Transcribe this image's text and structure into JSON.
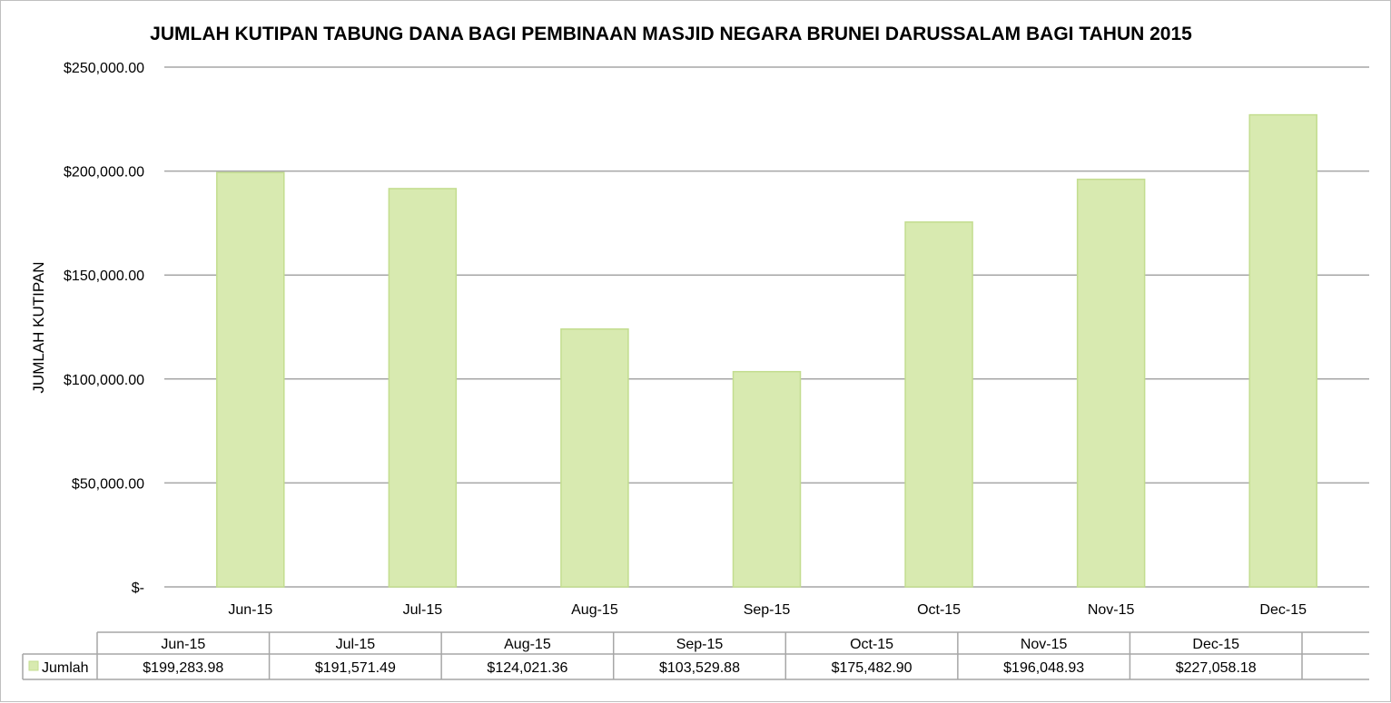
{
  "chart_data": {
    "type": "bar",
    "title": "JUMLAH KUTIPAN TABUNG DANA BAGI PEMBINAAN MASJID NEGARA BRUNEI DARUSSALAM BAGI TAHUN 2015",
    "xlabel": "",
    "ylabel": "JUMLAH KUTIPAN",
    "categories": [
      "Jun-15",
      "Jul-15",
      "Aug-15",
      "Sep-15",
      "Oct-15",
      "Nov-15",
      "Dec-15"
    ],
    "series": [
      {
        "name": "Jumlah",
        "color": "#d8eab0",
        "values": [
          199283.98,
          191571.49,
          124021.36,
          103529.88,
          175482.9,
          196048.93,
          227058.18
        ],
        "value_labels": [
          "$199,283.98",
          "$191,571.49",
          "$124,021.36",
          "$103,529.88",
          "$175,482.90",
          "$196,048.93",
          "$227,058.18"
        ]
      }
    ],
    "ylim": [
      0,
      250000
    ],
    "y_ticks": [
      0,
      50000,
      100000,
      150000,
      200000,
      250000
    ],
    "y_tick_labels": [
      "$-",
      "$50,000.00",
      "$100,000.00",
      "$150,000.00",
      "$200,000.00",
      "$250,000.00"
    ],
    "grid": true,
    "legend": "data-table",
    "data_table": true,
    "colors": {
      "bar_fill": "#d8eab0",
      "bar_stroke": "#c3dd8f",
      "gridline": "#a6a6a6",
      "table_border": "#a6a6a6"
    }
  }
}
